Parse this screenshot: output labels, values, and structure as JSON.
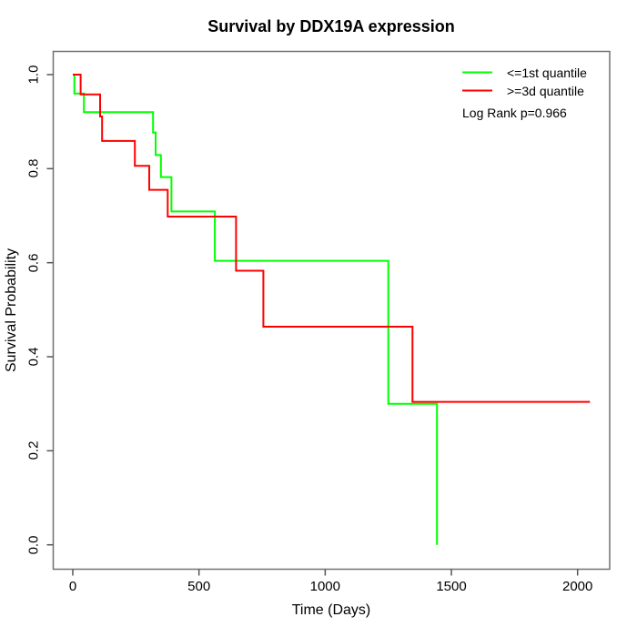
{
  "title": "Survival by DDX19A expression",
  "axes": {
    "x": {
      "label": "Time (Days)",
      "ticks": [
        "0",
        "500",
        "1000",
        "1500",
        "2000"
      ]
    },
    "y": {
      "label": "Survival Probability",
      "ticks": [
        "1.0",
        "0.8",
        "0.6",
        "0.4",
        "0.2",
        "0.0"
      ]
    }
  },
  "legend": {
    "items": [
      {
        "label": "<=1st quantile",
        "color": "#00ff00"
      },
      {
        "label": ">=3d quantile",
        "color": "#ff0000"
      }
    ],
    "note": "Log Rank p=0.966"
  },
  "chart_data": {
    "type": "line",
    "subtype": "kaplan-meier-step",
    "title": "Survival by DDX19A expression",
    "xlabel": "Time (Days)",
    "ylabel": "Survival Probability",
    "xlim": [
      0,
      2130
    ],
    "ylim": [
      0,
      1
    ],
    "x_ticks": [
      0,
      500,
      1000,
      1500,
      2000
    ],
    "y_ticks": [
      1.0,
      0.8,
      0.6,
      0.4,
      0.2,
      0.0
    ],
    "grid": false,
    "legend_position": "top-right",
    "annotation": "Log Rank p=0.966",
    "series": [
      {
        "name": "<=1st quantile",
        "color": "#00ff00",
        "points": [
          [
            0,
            1.0
          ],
          [
            6,
            1.0
          ],
          [
            6,
            0.96
          ],
          [
            44,
            0.96
          ],
          [
            44,
            0.92
          ],
          [
            318,
            0.92
          ],
          [
            318,
            0.877
          ],
          [
            328,
            0.877
          ],
          [
            328,
            0.829
          ],
          [
            349,
            0.829
          ],
          [
            349,
            0.782
          ],
          [
            391,
            0.782
          ],
          [
            391,
            0.709
          ],
          [
            563,
            0.709
          ],
          [
            563,
            0.604
          ],
          [
            1250,
            0.604
          ],
          [
            1250,
            0.3
          ],
          [
            1443,
            0.3
          ],
          [
            1443,
            0.0
          ]
        ]
      },
      {
        "name": ">=3d quantile",
        "color": "#ff0000",
        "points": [
          [
            0,
            1.0
          ],
          [
            31,
            1.0
          ],
          [
            31,
            0.958
          ],
          [
            108,
            0.958
          ],
          [
            108,
            0.911
          ],
          [
            116,
            0.911
          ],
          [
            116,
            0.859
          ],
          [
            246,
            0.859
          ],
          [
            246,
            0.806
          ],
          [
            303,
            0.806
          ],
          [
            303,
            0.755
          ],
          [
            376,
            0.755
          ],
          [
            376,
            0.698
          ],
          [
            647,
            0.698
          ],
          [
            647,
            0.583
          ],
          [
            755,
            0.583
          ],
          [
            755,
            0.464
          ],
          [
            1346,
            0.464
          ],
          [
            1346,
            0.304
          ],
          [
            2049,
            0.304
          ]
        ]
      }
    ]
  }
}
